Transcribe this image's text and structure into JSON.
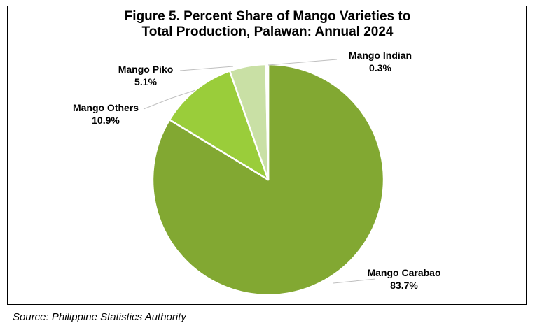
{
  "chart_data": {
    "type": "pie",
    "title": "Figure 5. Percent Share of Mango Varieties to Total Production, Palawan: Annual 2024",
    "title_lines": [
      "Figure 5. Percent Share of Mango Varieties to",
      "Total Production, Palawan: Annual 2024"
    ],
    "slices": [
      {
        "label": "Mango Carabao",
        "value": 83.7,
        "value_label": "83.7%",
        "color": "#82A832"
      },
      {
        "label": "Mango Others",
        "value": 10.9,
        "value_label": "10.9%",
        "color": "#9ACD3A"
      },
      {
        "label": "Mango Piko",
        "value": 5.1,
        "value_label": "5.1%",
        "color": "#C9E0A5"
      },
      {
        "label": "Mango Indian",
        "value": 0.3,
        "value_label": "0.3%",
        "color": "#F2F2F2"
      }
    ],
    "start_angle": "12 o'clock",
    "direction": "clockwise",
    "legend": "none"
  },
  "source": "Source: Philippine Statistics Authority"
}
